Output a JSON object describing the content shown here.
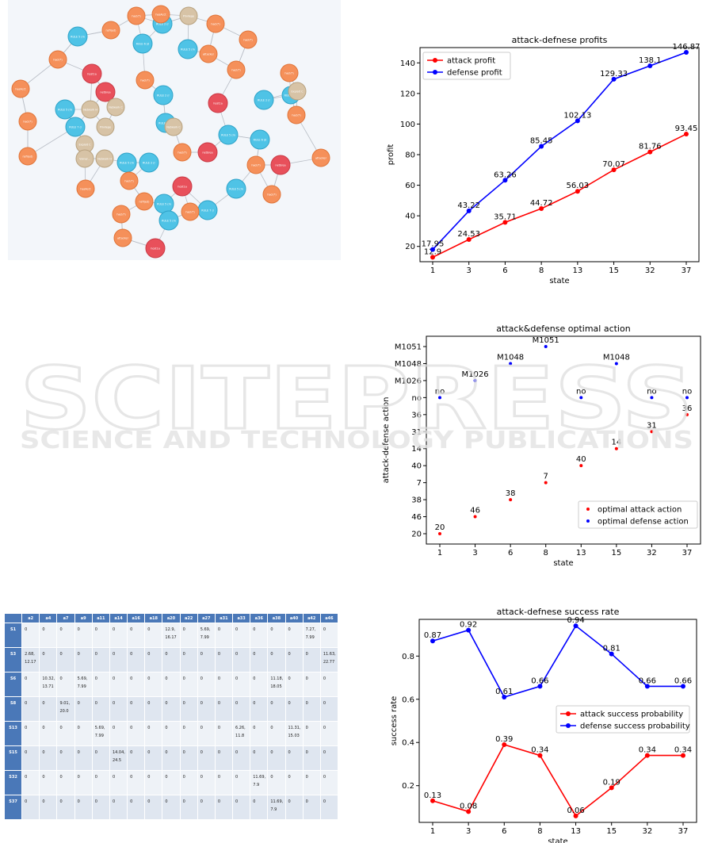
{
  "graph": {
    "node_labels": {
      "red": [
        "host1a",
        "netbrea",
        "host1a",
        "netbrea",
        "host1a",
        "netbrea",
        "host1a",
        "netbrea",
        "accessF"
      ],
      "blue": [
        "RULE 5 (multi-hop access)",
        "RULE 6 (direct network access)",
        "RULE 2 (remote exploit of serv)",
        "RULE 5 (multi-hop access)",
        "RULE 2 (remote exploit of serv)",
        "RULE 5 (multi-hop access)",
        "RULE 7 (local file)",
        "RULE 5 (multi-hop access)"
      ],
      "tan": [
        "Network Hardware",
        "Network Config",
        "Privileges",
        "Exploit Conn",
        "Vulner..."
      ],
      "orange": [
        "hacl(*)",
        "hasAcct",
        "hacl(*)",
        "nsfl(ed)",
        "hacl(*)",
        "hacl(*)",
        "attacker",
        "hacl(*)"
      ]
    }
  },
  "chart_data": [
    {
      "type": "line",
      "title": "attack-defnese profits",
      "xlabel": "state",
      "ylabel": "profit",
      "categories": [
        "1",
        "3",
        "6",
        "8",
        "13",
        "15",
        "32",
        "37"
      ],
      "ylim": [
        10,
        150
      ],
      "yticks": [
        20,
        40,
        60,
        80,
        100,
        120,
        140
      ],
      "grid": false,
      "legend_position": "top-left",
      "series": [
        {
          "name": "attack profit",
          "color": "#ff0000",
          "values": [
            12.9,
            24.53,
            35.71,
            44.72,
            56.03,
            70.07,
            81.76,
            93.45
          ],
          "labels": [
            "12.9",
            "24.53",
            "35.71",
            "44.72",
            "56.03",
            "70.07",
            "81.76",
            "93.45"
          ]
        },
        {
          "name": "defense profit",
          "color": "#0000ff",
          "values": [
            17.95,
            43.22,
            63.26,
            85.45,
            102.13,
            129.33,
            138.1,
            146.87
          ],
          "labels": [
            "17.95",
            "43.22",
            "63.26",
            "85.45",
            "102.13",
            "129.33",
            "138.1",
            "146.87"
          ]
        }
      ]
    },
    {
      "type": "scatter",
      "title": "attack&defense optimal action",
      "xlabel": "state",
      "ylabel": "attack-defense action",
      "categories": [
        "1",
        "3",
        "6",
        "8",
        "13",
        "15",
        "32",
        "37"
      ],
      "yticks": [
        "20",
        "46",
        "38",
        "7",
        "40",
        "14",
        "31",
        "36",
        "no",
        "M1026",
        "M1048",
        "M1051"
      ],
      "grid": false,
      "legend_position": "bottom-right",
      "series": [
        {
          "name": "optimal attack action",
          "color": "#ff0000",
          "values": [
            "20",
            "46",
            "38",
            "7",
            "40",
            "14",
            "31",
            "36"
          ]
        },
        {
          "name": "optimal defense action",
          "color": "#0000ff",
          "values": [
            "no",
            "M1026",
            "M1048",
            "M1051",
            "no",
            "M1048",
            "no",
            "no"
          ]
        }
      ]
    },
    {
      "type": "line",
      "title": "attack-defnese success rate",
      "xlabel": "state",
      "ylabel": "success rate",
      "categories": [
        "1",
        "3",
        "6",
        "8",
        "13",
        "15",
        "32",
        "37"
      ],
      "ylim": [
        0.03,
        0.97
      ],
      "yticks": [
        0.2,
        0.4,
        0.6,
        0.8
      ],
      "ytick_labels": [
        "0.2",
        "0.4",
        "0.6",
        "0.8"
      ],
      "grid": false,
      "legend_position": "center-right",
      "series": [
        {
          "name": "attack success probability",
          "color": "#ff0000",
          "values": [
            0.13,
            0.08,
            0.39,
            0.34,
            0.06,
            0.19,
            0.34,
            0.34
          ],
          "labels": [
            "0.13",
            "0.08",
            "0.39",
            "0.34",
            "0.06",
            "0.19",
            "0.34",
            "0.34"
          ]
        },
        {
          "name": "defense success probability",
          "color": "#0000ff",
          "values": [
            0.87,
            0.92,
            0.61,
            0.66,
            0.94,
            0.81,
            0.66,
            0.66
          ],
          "labels": [
            "0.87",
            "0.92",
            "0.61",
            "0.66",
            "0.94",
            "0.81",
            "0.66",
            "0.66"
          ]
        }
      ]
    },
    {
      "type": "table",
      "columns": [
        "",
        "a2",
        "a4",
        "a7",
        "a9",
        "a11",
        "a14",
        "a16",
        "a18",
        "a20",
        "a22",
        "a27",
        "a31",
        "a33",
        "a36",
        "a38",
        "a40",
        "a42",
        "a46"
      ],
      "rows": [
        [
          "S1",
          "0",
          "0",
          "0",
          "0",
          "0",
          "0",
          "0",
          "0",
          "12.9,\n16.17",
          "0",
          "5.69,\n7.99",
          "0",
          "0",
          "0",
          "0",
          "0",
          "7.27,\n7.99",
          "0"
        ],
        [
          "S3",
          "2.68,\n12.17",
          "0",
          "0",
          "0",
          "0",
          "0",
          "0",
          "0",
          "0",
          "0",
          "0",
          "0",
          "0",
          "0",
          "0",
          "0",
          "0",
          "11.63,\n22.77"
        ],
        [
          "S6",
          "0",
          "10.32,\n13.71",
          "0",
          "5.69,\n7.99",
          "0",
          "0",
          "0",
          "0",
          "0",
          "0",
          "0",
          "0",
          "0",
          "0",
          "11.18,\n18.05",
          "0",
          "0",
          "0"
        ],
        [
          "S8",
          "0",
          "0",
          "9.01,\n20.0",
          "0",
          "0",
          "0",
          "0",
          "0",
          "0",
          "0",
          "0",
          "0",
          "0",
          "0",
          "0",
          "0",
          "0",
          "0"
        ],
        [
          "S13",
          "0",
          "0",
          "0",
          "0",
          "5.69,\n7.99",
          "0",
          "0",
          "0",
          "0",
          "0",
          "0",
          "0",
          "6.26,\n11.8",
          "0",
          "0",
          "11.31,\n15.03",
          "0",
          "0"
        ],
        [
          "S15",
          "0",
          "0",
          "0",
          "0",
          "0",
          "14.04,\n24.5",
          "0",
          "0",
          "0",
          "0",
          "0",
          "0",
          "0",
          "0",
          "0",
          "0",
          "0",
          "0"
        ],
        [
          "S32",
          "0",
          "0",
          "0",
          "0",
          "0",
          "0",
          "0",
          "0",
          "0",
          "0",
          "0",
          "0",
          "0",
          "11.69,\n7.9",
          "0",
          "0",
          "0",
          "0"
        ],
        [
          "S37",
          "0",
          "0",
          "0",
          "0",
          "0",
          "0",
          "0",
          "0",
          "0",
          "0",
          "0",
          "0",
          "0",
          "0",
          "11.69,\n7.9",
          "0",
          "0",
          "0"
        ]
      ]
    }
  ],
  "watermark": {
    "line1": "SCITEPRESS",
    "line2": "SCIENCE AND TECHNOLOGY PUBLICATIONS"
  },
  "colors": {
    "attack": "#ff0000",
    "defense": "#0000ff",
    "red_node": "#e8505b",
    "blue_node": "#4fc3e6",
    "tan_node": "#d7c3a6",
    "orange_node": "#f5905a",
    "table_header": "#4a78b8"
  }
}
